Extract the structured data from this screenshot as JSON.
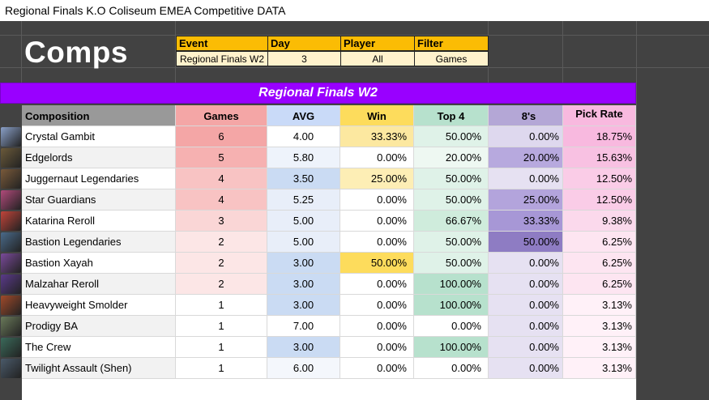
{
  "window_title": "Regional Finals K.O Coliseum EMEA Competitive DATA",
  "page_title": "Comps",
  "filters": {
    "headers": [
      "Event",
      "Day",
      "Player",
      "Filter"
    ],
    "values": [
      "Regional Finals W2",
      "3",
      "All",
      "Games"
    ]
  },
  "banner": "Regional Finals W2",
  "columns": [
    "Composition",
    "Games",
    "AVG",
    "Win",
    "Top 4",
    "8's",
    "Pick Rate"
  ],
  "rows": [
    {
      "name": "Crystal Gambit",
      "games": "6",
      "avg": "4.00",
      "win": "33.33%",
      "top4": "50.00%",
      "eights": "0.00%",
      "pick": "18.75%"
    },
    {
      "name": "Edgelords",
      "games": "5",
      "avg": "5.80",
      "win": "0.00%",
      "top4": "20.00%",
      "eights": "20.00%",
      "pick": "15.63%"
    },
    {
      "name": "Juggernaut Legendaries",
      "games": "4",
      "avg": "3.50",
      "win": "25.00%",
      "top4": "50.00%",
      "eights": "0.00%",
      "pick": "12.50%"
    },
    {
      "name": "Star Guardians",
      "games": "4",
      "avg": "5.25",
      "win": "0.00%",
      "top4": "50.00%",
      "eights": "25.00%",
      "pick": "12.50%"
    },
    {
      "name": "Katarina Reroll",
      "games": "3",
      "avg": "5.00",
      "win": "0.00%",
      "top4": "66.67%",
      "eights": "33.33%",
      "pick": "9.38%"
    },
    {
      "name": "Bastion Legendaries",
      "games": "2",
      "avg": "5.00",
      "win": "0.00%",
      "top4": "50.00%",
      "eights": "50.00%",
      "pick": "6.25%"
    },
    {
      "name": "Bastion Xayah",
      "games": "2",
      "avg": "3.00",
      "win": "50.00%",
      "top4": "50.00%",
      "eights": "0.00%",
      "pick": "6.25%"
    },
    {
      "name": "Malzahar Reroll",
      "games": "2",
      "avg": "3.00",
      "win": "0.00%",
      "top4": "100.00%",
      "eights": "0.00%",
      "pick": "6.25%"
    },
    {
      "name": "Heavyweight Smolder",
      "games": "1",
      "avg": "3.00",
      "win": "0.00%",
      "top4": "100.00%",
      "eights": "0.00%",
      "pick": "3.13%"
    },
    {
      "name": "Prodigy BA",
      "games": "1",
      "avg": "7.00",
      "win": "0.00%",
      "top4": "0.00%",
      "eights": "0.00%",
      "pick": "3.13%"
    },
    {
      "name": "The Crew",
      "games": "1",
      "avg": "3.00",
      "win": "0.00%",
      "top4": "100.00%",
      "eights": "0.00%",
      "pick": "3.13%"
    },
    {
      "name": "Twilight Assault (Shen)",
      "games": "1",
      "avg": "6.00",
      "win": "0.00%",
      "top4": "0.00%",
      "eights": "0.00%",
      "pick": "3.13%"
    }
  ],
  "row_colors": [
    {
      "icon": "#8aa0c8",
      "name": "#ffffff",
      "games": "#f4a6a6",
      "avg": "#ffffff",
      "win": "#fce8a0",
      "top4": "#dff2e8",
      "eights": "#ded8ee",
      "pick": "#f8b9df"
    },
    {
      "icon": "#6b5a3a",
      "name": "#f2f2f2",
      "games": "#f6b1b1",
      "avg": "#eef3fb",
      "win": "#ffffff",
      "top4": "#eef8f2",
      "eights": "#b7a9de",
      "pick": "#f8c1e2"
    },
    {
      "icon": "#7a5a3a",
      "name": "#ffffff",
      "games": "#f8c3c3",
      "avg": "#cadbf3",
      "win": "#fdeeb5",
      "top4": "#dff2e8",
      "eights": "#e6e1f2",
      "pick": "#facce7"
    },
    {
      "icon": "#b04a7a",
      "name": "#f2f2f2",
      "games": "#f8c3c3",
      "avg": "#e8eef9",
      "win": "#ffffff",
      "top4": "#dff2e8",
      "eights": "#b3a4dc",
      "pick": "#facce7"
    },
    {
      "icon": "#c0443a",
      "name": "#ffffff",
      "games": "#fad6d6",
      "avg": "#e8eef9",
      "win": "#ffffff",
      "top4": "#cfecdc",
      "eights": "#a797d6",
      "pick": "#fbd9ec"
    },
    {
      "icon": "#4a6a8a",
      "name": "#f2f2f2",
      "games": "#fce6e6",
      "avg": "#e8eef9",
      "win": "#ffffff",
      "top4": "#dff2e8",
      "eights": "#8e7cc3",
      "pick": "#fde5f1"
    },
    {
      "icon": "#7a4a9a",
      "name": "#ffffff",
      "games": "#fce6e6",
      "avg": "#cadbf3",
      "win": "#fddc5c",
      "top4": "#dff2e8",
      "eights": "#e6e1f2",
      "pick": "#fde5f1"
    },
    {
      "icon": "#5a3a8a",
      "name": "#f2f2f2",
      "games": "#fce6e6",
      "avg": "#cadbf3",
      "win": "#ffffff",
      "top4": "#b7e1cd",
      "eights": "#e6e1f2",
      "pick": "#fde5f1"
    },
    {
      "icon": "#a04a2a",
      "name": "#ffffff",
      "games": "#ffffff",
      "avg": "#cadbf3",
      "win": "#ffffff",
      "top4": "#b7e1cd",
      "eights": "#e6e1f2",
      "pick": "#fff1f8"
    },
    {
      "icon": "#6a7a5a",
      "name": "#f2f2f2",
      "games": "#ffffff",
      "avg": "#ffffff",
      "win": "#ffffff",
      "top4": "#ffffff",
      "eights": "#e6e1f2",
      "pick": "#fff1f8"
    },
    {
      "icon": "#3a6a5a",
      "name": "#ffffff",
      "games": "#ffffff",
      "avg": "#cadbf3",
      "win": "#ffffff",
      "top4": "#b7e1cd",
      "eights": "#e6e1f2",
      "pick": "#fff1f8"
    },
    {
      "icon": "#4a5a6a",
      "name": "#f2f2f2",
      "games": "#ffffff",
      "avg": "#f4f7fc",
      "win": "#ffffff",
      "top4": "#ffffff",
      "eights": "#e6e1f2",
      "pick": "#fff1f8"
    }
  ],
  "header_colors": {
    "composition": "#999999",
    "games": "#f4a6a6",
    "avg": "#c9daf8",
    "win": "#fddc5c",
    "top4": "#b7e1cd",
    "eights": "#b4a7d6",
    "pick": "#f8b9df"
  }
}
